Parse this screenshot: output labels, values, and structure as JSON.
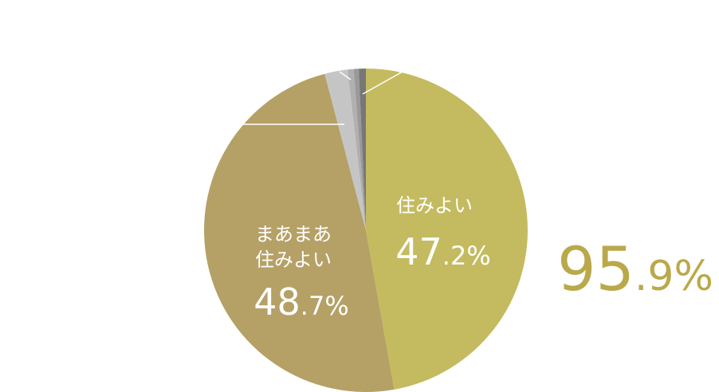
{
  "chart_data": {
    "type": "pie",
    "slices": [
      {
        "label": "住みよい",
        "value": 47.2,
        "value_int": "47",
        "value_dec": ".2%",
        "color": "#c4bb60"
      },
      {
        "label_lines": [
          "まあまあ",
          "住みよい"
        ],
        "value": 48.7,
        "value_int": "48",
        "value_dec": ".7%",
        "color": "#b5a066"
      },
      {
        "value": 2.3,
        "color": "#c5c5c5"
      },
      {
        "value": 0.6,
        "color": "#b0b0b0"
      },
      {
        "value": 0.5,
        "color": "#999999"
      },
      {
        "value": 0.7,
        "color": "#777777"
      }
    ],
    "total": {
      "int": "95",
      "dec": ".9%"
    },
    "total_color": "#b9a94a"
  }
}
